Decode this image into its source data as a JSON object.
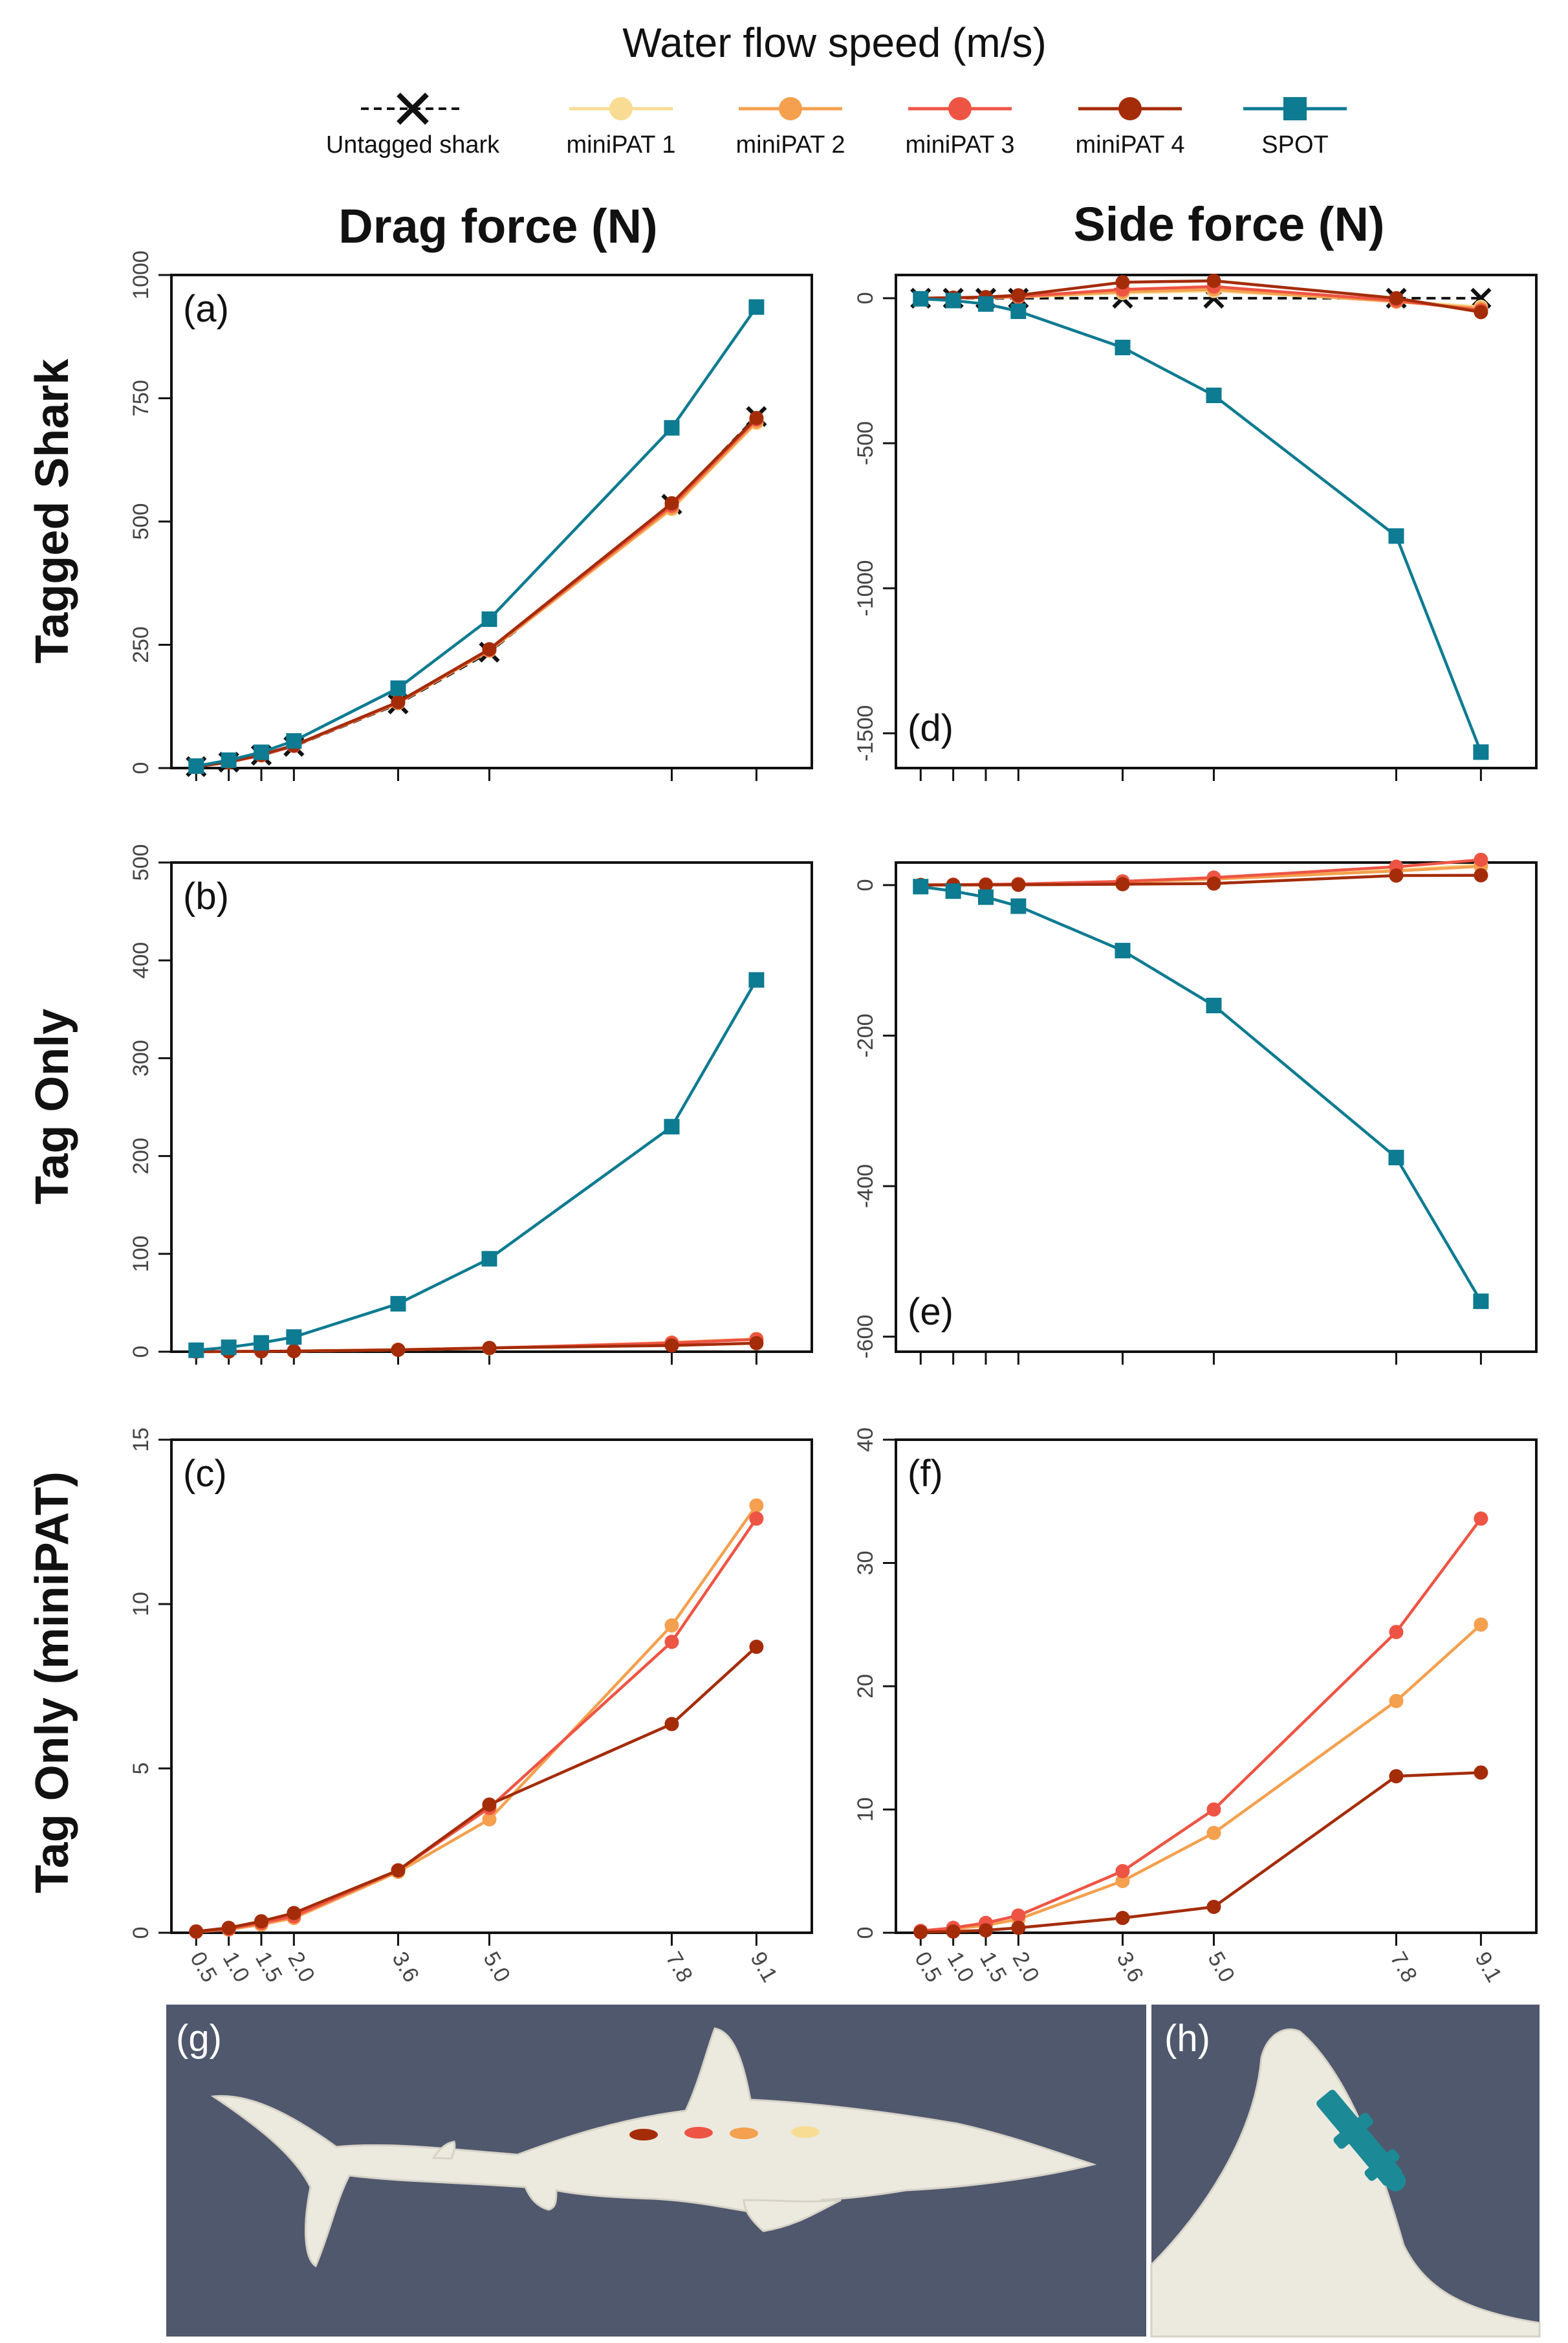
{
  "legend": {
    "title": "Water flow speed (m/s)",
    "entries": [
      {
        "name": "Untagged shark",
        "color": "#111111",
        "marker": "x",
        "dash": true
      },
      {
        "name": "miniPAT 1",
        "color": "#f8dc94",
        "marker": "circle"
      },
      {
        "name": "miniPAT 2",
        "color": "#f4a04e",
        "marker": "circle"
      },
      {
        "name": "miniPAT 3",
        "color": "#ee5444",
        "marker": "circle"
      },
      {
        "name": "miniPAT 4",
        "color": "#a42c08",
        "marker": "circle"
      },
      {
        "name": "SPOT",
        "color": "#0d7b91",
        "marker": "square"
      }
    ]
  },
  "column_titles": [
    "Drag force (N)",
    "Side force (N)"
  ],
  "row_titles": [
    "Tagged Shark",
    "Tag Only",
    "Tag Only (miniPAT)"
  ],
  "x_tick_labels": [
    "0.5",
    "1.0",
    "1.5",
    "2.0",
    "3.6",
    "5.0",
    "7.8",
    "9.1"
  ],
  "chart_data": [
    {
      "type": "line",
      "panel": "(a)",
      "title": "Drag force (N)",
      "row": "Tagged Shark",
      "ylim": [
        0,
        1000
      ],
      "yticks": [
        0,
        250,
        500,
        750,
        1000
      ],
      "x": [
        0.5,
        1.0,
        1.5,
        2.0,
        3.6,
        5.0,
        7.8,
        9.1
      ],
      "series": [
        {
          "name": "Untagged shark",
          "values": [
            3,
            12,
            26,
            44,
            130,
            235,
            535,
            713
          ]
        },
        {
          "name": "miniPAT 1",
          "values": [
            3,
            12,
            26,
            45,
            132,
            238,
            525,
            700
          ]
        },
        {
          "name": "miniPAT 2",
          "values": [
            3,
            12,
            26,
            45,
            132,
            238,
            527,
            702
          ]
        },
        {
          "name": "miniPAT 3",
          "values": [
            3,
            12,
            26,
            45,
            133,
            240,
            532,
            707
          ]
        },
        {
          "name": "miniPAT 4",
          "values": [
            3,
            12,
            27,
            46,
            134,
            241,
            537,
            710
          ]
        },
        {
          "name": "SPOT",
          "values": [
            4,
            16,
            32,
            55,
            162,
            302,
            690,
            935
          ]
        }
      ]
    },
    {
      "type": "line",
      "panel": "(b)",
      "title": "Drag force (N)",
      "row": "Tag Only",
      "ylim": [
        0,
        500
      ],
      "yticks": [
        0,
        100,
        200,
        300,
        400,
        500
      ],
      "x": [
        0.5,
        1.0,
        1.5,
        2.0,
        3.6,
        5.0,
        7.8,
        9.1
      ],
      "series": [
        {
          "name": "miniPAT 1",
          "values": [
            0.1,
            0.2,
            0.4,
            0.6,
            2,
            3.5,
            9,
            13
          ]
        },
        {
          "name": "miniPAT 2",
          "values": [
            0.1,
            0.2,
            0.4,
            0.6,
            2,
            3.5,
            9.4,
            13
          ]
        },
        {
          "name": "miniPAT 3",
          "values": [
            0.1,
            0.2,
            0.4,
            0.6,
            1.9,
            3.8,
            8.9,
            12.6
          ]
        },
        {
          "name": "miniPAT 4",
          "values": [
            0.1,
            0.2,
            0.4,
            0.6,
            1.9,
            3.9,
            6.4,
            8.7
          ]
        },
        {
          "name": "SPOT",
          "values": [
            1.5,
            4.5,
            9,
            15,
            49,
            95,
            230,
            380
          ]
        }
      ]
    },
    {
      "type": "line",
      "panel": "(c)",
      "title": "Drag force (N)",
      "row": "Tag Only (miniPAT)",
      "ylim": [
        0,
        15
      ],
      "yticks": [
        0,
        5,
        10,
        15
      ],
      "x": [
        0.5,
        1.0,
        1.5,
        2.0,
        3.6,
        5.0,
        7.8,
        9.1
      ],
      "series": [
        {
          "name": "miniPAT 2",
          "values": [
            0.03,
            0.1,
            0.25,
            0.45,
            1.85,
            3.45,
            9.35,
            13.0
          ]
        },
        {
          "name": "miniPAT 3",
          "values": [
            0.03,
            0.12,
            0.3,
            0.5,
            1.9,
            3.8,
            8.85,
            12.6
          ]
        },
        {
          "name": "miniPAT 4",
          "values": [
            0.04,
            0.15,
            0.35,
            0.6,
            1.9,
            3.9,
            6.35,
            8.7
          ]
        }
      ]
    },
    {
      "type": "line",
      "panel": "(d)",
      "title": "Side force (N)",
      "row": "Tagged Shark",
      "ylim": [
        -1620,
        80
      ],
      "yticks": [
        0,
        -500,
        -1000,
        -1500
      ],
      "x": [
        0.5,
        1.0,
        1.5,
        2.0,
        3.6,
        5.0,
        7.8,
        9.1
      ],
      "series": [
        {
          "name": "Untagged shark",
          "values": [
            0,
            0,
            0,
            0,
            0,
            0,
            0,
            0
          ]
        },
        {
          "name": "miniPAT 1",
          "values": [
            0,
            1,
            2,
            4,
            18,
            25,
            -10,
            -30
          ]
        },
        {
          "name": "miniPAT 2",
          "values": [
            0,
            1,
            2,
            5,
            22,
            30,
            -12,
            -35
          ]
        },
        {
          "name": "miniPAT 3",
          "values": [
            0,
            1,
            3,
            6,
            30,
            40,
            -8,
            -42
          ]
        },
        {
          "name": "miniPAT 4",
          "values": [
            0,
            2,
            4,
            10,
            55,
            60,
            0,
            -48
          ]
        },
        {
          "name": "SPOT",
          "values": [
            -2,
            -8,
            -20,
            -45,
            -170,
            -335,
            -820,
            -1565
          ]
        }
      ]
    },
    {
      "type": "line",
      "panel": "(e)",
      "title": "Side force (N)",
      "row": "Tag Only",
      "ylim": [
        -620,
        30
      ],
      "yticks": [
        0,
        -200,
        -400,
        -600
      ],
      "x": [
        0.5,
        1.0,
        1.5,
        2.0,
        3.6,
        5.0,
        7.8,
        9.1
      ],
      "series": [
        {
          "name": "miniPAT 1",
          "values": [
            0.2,
            0.5,
            1,
            1.3,
            4.5,
            9,
            20,
            27
          ]
        },
        {
          "name": "miniPAT 2",
          "values": [
            0.2,
            0.4,
            0.8,
            1.2,
            4.2,
            8,
            18.8,
            25
          ]
        },
        {
          "name": "miniPAT 3",
          "values": [
            0.2,
            0.5,
            0.9,
            1.4,
            5,
            10,
            24.4,
            33.6
          ]
        },
        {
          "name": "miniPAT 4",
          "values": [
            0.1,
            0.2,
            0.3,
            0.4,
            1.2,
            2.1,
            12.7,
            13
          ]
        },
        {
          "name": "SPOT",
          "values": [
            -2,
            -8,
            -16,
            -28,
            -87,
            -160,
            -362,
            -553
          ]
        }
      ]
    },
    {
      "type": "line",
      "panel": "(f)",
      "title": "Side force (N)",
      "row": "Tag Only (miniPAT)",
      "ylim": [
        0,
        40
      ],
      "yticks": [
        0,
        10,
        20,
        30,
        40
      ],
      "x": [
        0.5,
        1.0,
        1.5,
        2.0,
        3.6,
        5.0,
        7.8,
        9.1
      ],
      "series": [
        {
          "name": "miniPAT 2",
          "values": [
            0.1,
            0.3,
            0.6,
            1.1,
            4.2,
            8.1,
            18.8,
            25.0
          ]
        },
        {
          "name": "miniPAT 3",
          "values": [
            0.15,
            0.4,
            0.8,
            1.4,
            5.0,
            10.0,
            24.4,
            33.6
          ]
        },
        {
          "name": "miniPAT 4",
          "values": [
            0.05,
            0.1,
            0.2,
            0.4,
            1.2,
            2.1,
            12.7,
            13.0
          ]
        }
      ]
    }
  ],
  "images": [
    {
      "label": "(g)",
      "background": "#50586e",
      "body_color": "#ece9df"
    },
    {
      "label": "(h)",
      "background": "#50586e",
      "body_color": "#ece9df"
    }
  ]
}
